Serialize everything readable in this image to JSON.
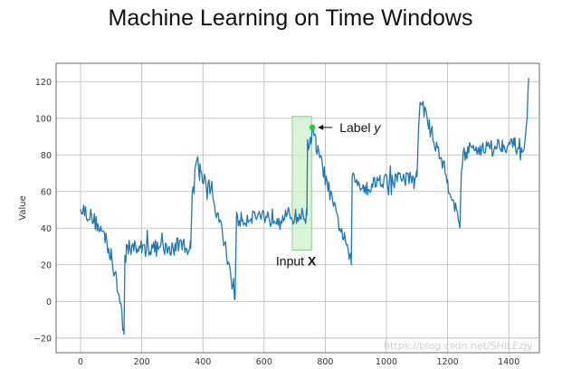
{
  "slide": {
    "title": "Machine Learning on Time Windows"
  },
  "chart_data": {
    "type": "line",
    "title": "",
    "xlabel": "",
    "ylabel": "Value",
    "xlim": [
      -80,
      1500
    ],
    "ylim": [
      -28,
      130
    ],
    "xticks": [
      0,
      200,
      400,
      600,
      800,
      1000,
      1200,
      1400
    ],
    "yticks": [
      -20,
      0,
      20,
      40,
      60,
      80,
      100,
      120
    ],
    "grid": true,
    "line_color": "#1f77b4",
    "series": [
      {
        "anchors": [
          [
            0,
            54
          ],
          [
            10,
            50
          ],
          [
            30,
            47
          ],
          [
            60,
            41
          ],
          [
            80,
            35
          ],
          [
            100,
            24
          ],
          [
            120,
            8
          ],
          [
            135,
            -5
          ],
          [
            142,
            -18
          ],
          [
            145,
            20
          ],
          [
            150,
            29
          ],
          [
            200,
            29
          ],
          [
            260,
            29
          ],
          [
            300,
            28
          ],
          [
            320,
            32
          ],
          [
            360,
            29
          ],
          [
            365,
            58
          ],
          [
            375,
            74
          ],
          [
            380,
            78
          ],
          [
            390,
            72
          ],
          [
            420,
            62
          ],
          [
            450,
            46
          ],
          [
            480,
            25
          ],
          [
            500,
            6
          ],
          [
            505,
            1
          ],
          [
            510,
            45
          ],
          [
            530,
            44
          ],
          [
            560,
            47
          ],
          [
            600,
            47
          ],
          [
            640,
            46
          ],
          [
            680,
            47
          ],
          [
            700,
            46
          ],
          [
            730,
            47
          ],
          [
            740,
            47
          ],
          [
            742,
            86
          ],
          [
            748,
            87
          ],
          [
            755,
            90
          ],
          [
            760,
            94
          ],
          [
            770,
            85
          ],
          [
            800,
            68
          ],
          [
            830,
            50
          ],
          [
            860,
            35
          ],
          [
            880,
            25
          ],
          [
            885,
            20
          ],
          [
            888,
            68
          ],
          [
            900,
            66
          ],
          [
            940,
            62
          ],
          [
            980,
            67
          ],
          [
            1020,
            65
          ],
          [
            1050,
            68
          ],
          [
            1090,
            66
          ],
          [
            1100,
            68
          ],
          [
            1105,
            97
          ],
          [
            1110,
            108
          ],
          [
            1120,
            107
          ],
          [
            1140,
            95
          ],
          [
            1180,
            78
          ],
          [
            1200,
            65
          ],
          [
            1220,
            55
          ],
          [
            1240,
            40
          ],
          [
            1245,
            76
          ],
          [
            1260,
            82
          ],
          [
            1300,
            84
          ],
          [
            1340,
            84
          ],
          [
            1380,
            86
          ],
          [
            1420,
            85
          ],
          [
            1450,
            84
          ],
          [
            1460,
            98
          ],
          [
            1465,
            122
          ]
        ],
        "noise_amplitude": 4.5,
        "step": 3
      }
    ],
    "annotations": {
      "input_window": {
        "x_start": 692,
        "x_end": 755,
        "y_low": 28,
        "y_high": 101,
        "fill": "#ccf0cc",
        "stroke": "#7fbf7f"
      },
      "label_point": {
        "x": 758,
        "y": 95,
        "color": "#22cc22"
      },
      "label_text": "Label ",
      "label_var": "y",
      "input_text": "Input ",
      "input_var": "X"
    }
  },
  "watermark": "https://blog.csdn.net/SHILEzjy"
}
